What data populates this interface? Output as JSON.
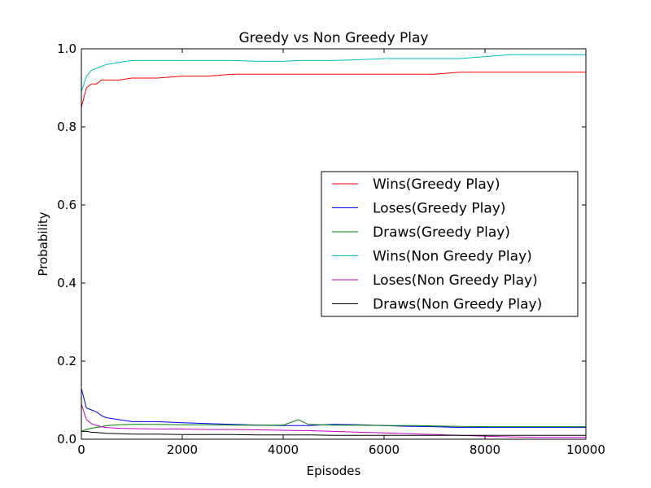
{
  "chart_data": {
    "type": "line",
    "title": "Greedy vs Non Greedy Play",
    "xlabel": "Episodes",
    "ylabel": "Probability",
    "xlim": [
      0,
      10000
    ],
    "ylim": [
      0,
      1.0
    ],
    "xticks": [
      0,
      2000,
      4000,
      6000,
      8000,
      10000
    ],
    "xtick_labels": [
      "0",
      "2000",
      "4000",
      "6000",
      "8000",
      "10000"
    ],
    "yticks": [
      0,
      0.2,
      0.4,
      0.6,
      0.8,
      1.0
    ],
    "ytick_labels": [
      "0.0",
      "0.2",
      "0.4",
      "0.6",
      "0.8",
      "1.0"
    ],
    "grid": false,
    "legend_position": "center-right",
    "x": [
      0,
      100,
      200,
      300,
      400,
      500,
      750,
      1000,
      1500,
      2000,
      2500,
      3000,
      3500,
      4000,
      4300,
      4500,
      5000,
      5500,
      6000,
      6500,
      7000,
      7500,
      8000,
      8500,
      9000,
      9500,
      10000
    ],
    "series": [
      {
        "name": "Wins(Greedy Play)",
        "color": "#ff0000",
        "values": [
          0.85,
          0.9,
          0.91,
          0.91,
          0.92,
          0.92,
          0.92,
          0.925,
          0.925,
          0.93,
          0.93,
          0.935,
          0.935,
          0.935,
          0.935,
          0.935,
          0.935,
          0.935,
          0.935,
          0.935,
          0.935,
          0.94,
          0.94,
          0.94,
          0.94,
          0.94,
          0.94
        ]
      },
      {
        "name": "Loses(Greedy Play)",
        "color": "#0000ff",
        "values": [
          0.13,
          0.08,
          0.075,
          0.07,
          0.06,
          0.055,
          0.05,
          0.045,
          0.045,
          0.042,
          0.04,
          0.038,
          0.036,
          0.035,
          0.035,
          0.035,
          0.038,
          0.037,
          0.035,
          0.033,
          0.032,
          0.03,
          0.03,
          0.03,
          0.03,
          0.03,
          0.03
        ]
      },
      {
        "name": "Draws(Greedy Play)",
        "color": "#008000",
        "values": [
          0.02,
          0.025,
          0.028,
          0.03,
          0.032,
          0.035,
          0.037,
          0.038,
          0.038,
          0.037,
          0.037,
          0.036,
          0.036,
          0.036,
          0.05,
          0.038,
          0.036,
          0.036,
          0.035,
          0.035,
          0.034,
          0.033,
          0.032,
          0.032,
          0.032,
          0.032,
          0.032
        ]
      },
      {
        "name": "Wins(Non Greedy Play)",
        "color": "#00bfbf",
        "values": [
          0.89,
          0.93,
          0.945,
          0.95,
          0.955,
          0.96,
          0.965,
          0.97,
          0.97,
          0.97,
          0.97,
          0.97,
          0.968,
          0.968,
          0.97,
          0.97,
          0.97,
          0.972,
          0.975,
          0.975,
          0.975,
          0.975,
          0.98,
          0.985,
          0.985,
          0.985,
          0.985
        ]
      },
      {
        "name": "Loses(Non Greedy Play)",
        "color": "#bf00bf",
        "values": [
          0.09,
          0.05,
          0.04,
          0.035,
          0.032,
          0.03,
          0.028,
          0.027,
          0.026,
          0.026,
          0.025,
          0.025,
          0.024,
          0.023,
          0.022,
          0.022,
          0.02,
          0.018,
          0.016,
          0.014,
          0.012,
          0.01,
          0.008,
          0.006,
          0.005,
          0.005,
          0.005
        ]
      },
      {
        "name": "Draws(Non Greedy Play)",
        "color": "#000000",
        "values": [
          0.02,
          0.02,
          0.018,
          0.017,
          0.016,
          0.015,
          0.014,
          0.013,
          0.013,
          0.012,
          0.012,
          0.012,
          0.011,
          0.011,
          0.011,
          0.011,
          0.01,
          0.01,
          0.01,
          0.01,
          0.01,
          0.01,
          0.01,
          0.01,
          0.01,
          0.01,
          0.01
        ]
      }
    ]
  }
}
